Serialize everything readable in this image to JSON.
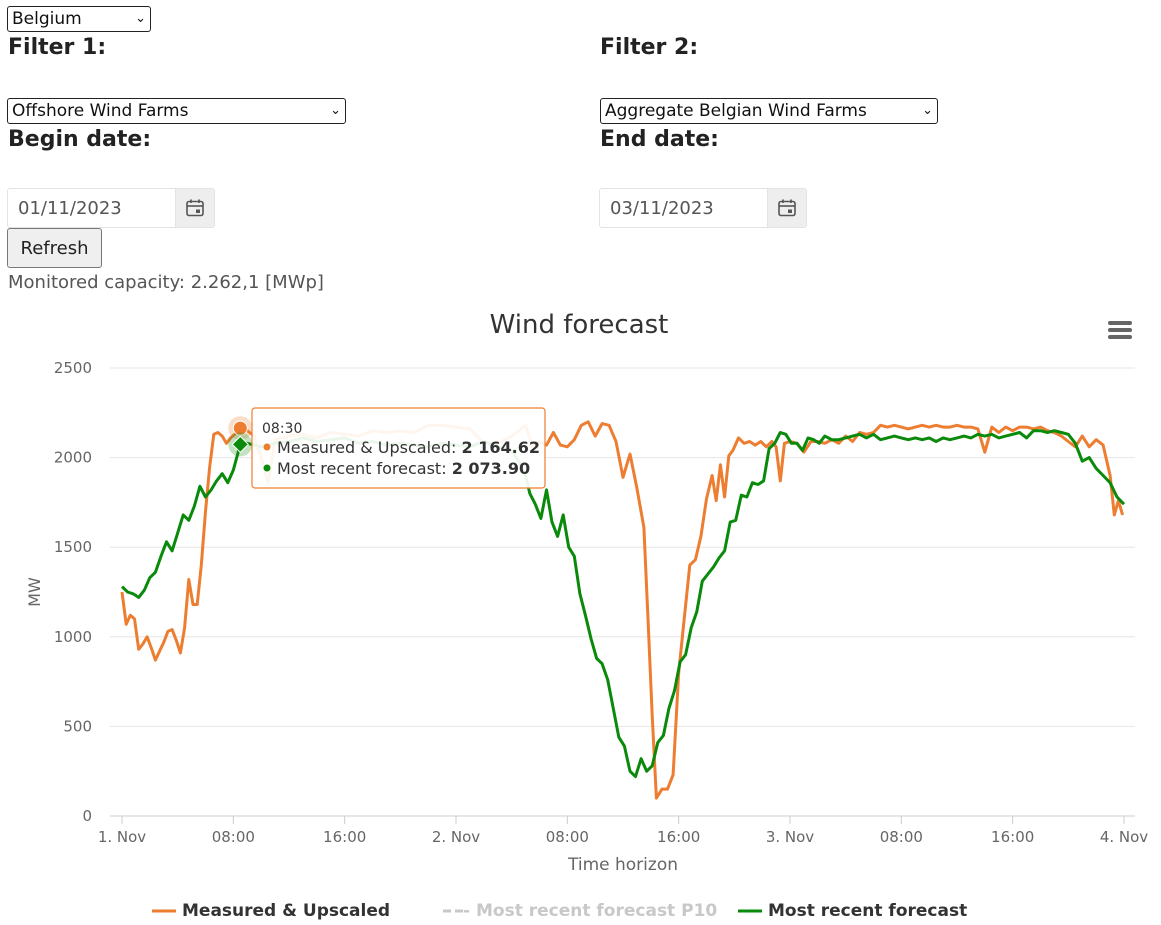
{
  "country_select": {
    "value": "Belgium"
  },
  "filter1": {
    "label": "Filter 1:",
    "value": "Offshore Wind Farms"
  },
  "filter2": {
    "label": "Filter 2:",
    "value": "Aggregate Belgian Wind Farms"
  },
  "begin_date": {
    "label": "Begin date:",
    "value": "01/11/2023"
  },
  "end_date": {
    "label": "End date:",
    "value": "03/11/2023"
  },
  "refresh_label": "Refresh",
  "capacity_text": "Monitored capacity: 2.262,1 [MWp]",
  "menu_icon": "hamburger-menu-icon",
  "calendar_icon": "calendar-icon",
  "tooltip": {
    "time": "08:30",
    "rows": [
      {
        "label": "Measured & Upscaled: ",
        "value": "2 164.62",
        "color": "#ED7D31"
      },
      {
        "label": "Most recent forecast: ",
        "value": "2 073.90",
        "color": "#0A8A0A"
      }
    ]
  },
  "chart_data": {
    "type": "line",
    "title": "Wind forecast",
    "xlabel": "Time horizon",
    "ylabel": "MW",
    "ylim": [
      0,
      2500
    ],
    "xlim_hours": [
      0,
      72
    ],
    "yticks": [
      "0",
      "500",
      "1000",
      "1500",
      "2000",
      "2500"
    ],
    "xticks": [
      {
        "h": 0,
        "label": "1. Nov"
      },
      {
        "h": 8,
        "label": "08:00"
      },
      {
        "h": 16,
        "label": "16:00"
      },
      {
        "h": 24,
        "label": "2. Nov"
      },
      {
        "h": 32,
        "label": "08:00"
      },
      {
        "h": 40,
        "label": "16:00"
      },
      {
        "h": 48,
        "label": "3. Nov"
      },
      {
        "h": 56,
        "label": "08:00"
      },
      {
        "h": 64,
        "label": "16:00"
      },
      {
        "h": 72,
        "label": "4. Nov"
      }
    ],
    "grid": true,
    "legend_position": "bottom",
    "colors": {
      "measured": "#ED7D31",
      "p10": "#C8C8C8",
      "forecast": "#0A8A0A"
    },
    "series": [
      {
        "name": "Measured & Upscaled",
        "color": "#ED7D31",
        "points": [
          [
            0,
            1250
          ],
          [
            0.3,
            1070
          ],
          [
            0.6,
            1120
          ],
          [
            0.9,
            1100
          ],
          [
            1.2,
            930
          ],
          [
            1.5,
            960
          ],
          [
            1.8,
            1000
          ],
          [
            2.1,
            940
          ],
          [
            2.4,
            870
          ],
          [
            2.7,
            920
          ],
          [
            3.0,
            970
          ],
          [
            3.3,
            1030
          ],
          [
            3.6,
            1040
          ],
          [
            3.9,
            980
          ],
          [
            4.2,
            910
          ],
          [
            4.5,
            1050
          ],
          [
            4.8,
            1320
          ],
          [
            5.1,
            1180
          ],
          [
            5.4,
            1180
          ],
          [
            5.7,
            1400
          ],
          [
            6.0,
            1700
          ],
          [
            6.3,
            1950
          ],
          [
            6.6,
            2130
          ],
          [
            6.9,
            2140
          ],
          [
            7.2,
            2120
          ],
          [
            7.5,
            2080
          ],
          [
            7.8,
            2110
          ],
          [
            8.1,
            2130
          ],
          [
            8.5,
            2165
          ],
          [
            9.0,
            2150
          ],
          [
            9.5,
            2120
          ],
          [
            10,
            2000
          ],
          [
            10.5,
            1860
          ],
          [
            11,
            2100
          ],
          [
            12,
            2120
          ],
          [
            13,
            2130
          ],
          [
            14,
            2110
          ],
          [
            15,
            2140
          ],
          [
            16,
            2130
          ],
          [
            17,
            2120
          ],
          [
            18,
            2150
          ],
          [
            19,
            2140
          ],
          [
            20,
            2150
          ],
          [
            21,
            2140
          ],
          [
            22,
            2180
          ],
          [
            23,
            2180
          ],
          [
            24,
            2170
          ],
          [
            25,
            2160
          ],
          [
            26,
            2080
          ],
          [
            27,
            2080
          ],
          [
            28,
            2120
          ],
          [
            29,
            2180
          ],
          [
            29.5,
            2060
          ],
          [
            30,
            2090
          ],
          [
            30.5,
            2070
          ],
          [
            31,
            2140
          ],
          [
            31.5,
            2070
          ],
          [
            32,
            2060
          ],
          [
            32.5,
            2100
          ],
          [
            33,
            2180
          ],
          [
            33.5,
            2200
          ],
          [
            34,
            2120
          ],
          [
            34.5,
            2190
          ],
          [
            35,
            2180
          ],
          [
            35.5,
            2090
          ],
          [
            36,
            1890
          ],
          [
            36.5,
            2020
          ],
          [
            37,
            1830
          ],
          [
            37.5,
            1610
          ],
          [
            37.8,
            1100
          ],
          [
            38.1,
            560
          ],
          [
            38.4,
            100
          ],
          [
            38.8,
            150
          ],
          [
            39.2,
            150
          ],
          [
            39.6,
            230
          ],
          [
            40.0,
            800
          ],
          [
            40.4,
            1100
          ],
          [
            40.8,
            1400
          ],
          [
            41.2,
            1430
          ],
          [
            41.6,
            1560
          ],
          [
            42.0,
            1770
          ],
          [
            42.4,
            1900
          ],
          [
            42.7,
            1760
          ],
          [
            43.0,
            1960
          ],
          [
            43.3,
            1780
          ],
          [
            43.6,
            2010
          ],
          [
            43.9,
            2040
          ],
          [
            44.3,
            2110
          ],
          [
            44.7,
            2080
          ],
          [
            45.1,
            2090
          ],
          [
            45.5,
            2070
          ],
          [
            45.9,
            2090
          ],
          [
            46.3,
            2060
          ],
          [
            46.7,
            2090
          ],
          [
            47.0,
            2060
          ],
          [
            47.3,
            1870
          ],
          [
            47.6,
            2080
          ],
          [
            48,
            2090
          ],
          [
            48.5,
            2080
          ],
          [
            49,
            2030
          ],
          [
            49.5,
            2090
          ],
          [
            50,
            2090
          ],
          [
            50.5,
            2080
          ],
          [
            51,
            2100
          ],
          [
            51.5,
            2080
          ],
          [
            52,
            2120
          ],
          [
            52.5,
            2090
          ],
          [
            53,
            2140
          ],
          [
            53.5,
            2130
          ],
          [
            54,
            2140
          ],
          [
            54.5,
            2180
          ],
          [
            55,
            2170
          ],
          [
            55.5,
            2180
          ],
          [
            56,
            2170
          ],
          [
            56.5,
            2160
          ],
          [
            57,
            2170
          ],
          [
            57.5,
            2180
          ],
          [
            58,
            2170
          ],
          [
            58.5,
            2180
          ],
          [
            59,
            2170
          ],
          [
            59.5,
            2170
          ],
          [
            60,
            2180
          ],
          [
            60.5,
            2170
          ],
          [
            61,
            2170
          ],
          [
            61.5,
            2160
          ],
          [
            62,
            2030
          ],
          [
            62.5,
            2170
          ],
          [
            63,
            2140
          ],
          [
            63.5,
            2170
          ],
          [
            64,
            2150
          ],
          [
            64.5,
            2170
          ],
          [
            65,
            2170
          ],
          [
            65.5,
            2160
          ],
          [
            66,
            2170
          ],
          [
            66.5,
            2150
          ],
          [
            67,
            2140
          ],
          [
            67.5,
            2120
          ],
          [
            68,
            2090
          ],
          [
            68.5,
            2060
          ],
          [
            69,
            2120
          ],
          [
            69.5,
            2060
          ],
          [
            70,
            2100
          ],
          [
            70.5,
            2070
          ],
          [
            71,
            1900
          ],
          [
            71.3,
            1680
          ],
          [
            71.6,
            1760
          ],
          [
            71.9,
            1680
          ]
        ]
      },
      {
        "name": "- Most recent forecast P10",
        "color": "#C8C8C8",
        "points": []
      },
      {
        "name": "Most recent forecast",
        "color": "#0A8A0A",
        "points": [
          [
            0,
            1280
          ],
          [
            0.4,
            1250
          ],
          [
            0.8,
            1240
          ],
          [
            1.2,
            1220
          ],
          [
            1.6,
            1260
          ],
          [
            2.0,
            1330
          ],
          [
            2.4,
            1360
          ],
          [
            2.8,
            1450
          ],
          [
            3.2,
            1530
          ],
          [
            3.6,
            1480
          ],
          [
            4.0,
            1580
          ],
          [
            4.4,
            1680
          ],
          [
            4.8,
            1650
          ],
          [
            5.2,
            1730
          ],
          [
            5.6,
            1840
          ],
          [
            6.0,
            1780
          ],
          [
            6.4,
            1820
          ],
          [
            6.8,
            1870
          ],
          [
            7.2,
            1910
          ],
          [
            7.6,
            1860
          ],
          [
            8.0,
            1930
          ],
          [
            8.5,
            2074
          ],
          [
            9.0,
            2080
          ],
          [
            10,
            2060
          ],
          [
            11,
            2080
          ],
          [
            12,
            2090
          ],
          [
            13,
            2110
          ],
          [
            14,
            2090
          ],
          [
            15,
            2100
          ],
          [
            16,
            2110
          ],
          [
            17,
            2080
          ],
          [
            18,
            2090
          ],
          [
            19,
            2070
          ],
          [
            20,
            2080
          ],
          [
            21,
            2070
          ],
          [
            22,
            2060
          ],
          [
            23,
            2080
          ],
          [
            24,
            2070
          ],
          [
            25,
            2060
          ],
          [
            26,
            2090
          ],
          [
            27,
            2060
          ],
          [
            28,
            2040
          ],
          [
            28.5,
            1980
          ],
          [
            29,
            1900
          ],
          [
            29.3,
            1800
          ],
          [
            29.7,
            1740
          ],
          [
            30.1,
            1660
          ],
          [
            30.5,
            1820
          ],
          [
            30.9,
            1640
          ],
          [
            31.3,
            1560
          ],
          [
            31.7,
            1680
          ],
          [
            32.1,
            1500
          ],
          [
            32.5,
            1450
          ],
          [
            32.9,
            1240
          ],
          [
            33.3,
            1120
          ],
          [
            33.7,
            990
          ],
          [
            34.1,
            880
          ],
          [
            34.5,
            850
          ],
          [
            34.9,
            760
          ],
          [
            35.3,
            600
          ],
          [
            35.7,
            440
          ],
          [
            36.1,
            390
          ],
          [
            36.5,
            250
          ],
          [
            36.9,
            220
          ],
          [
            37.3,
            320
          ],
          [
            37.7,
            250
          ],
          [
            38.1,
            280
          ],
          [
            38.5,
            410
          ],
          [
            38.9,
            450
          ],
          [
            39.3,
            600
          ],
          [
            39.7,
            700
          ],
          [
            40.1,
            860
          ],
          [
            40.5,
            900
          ],
          [
            40.9,
            1050
          ],
          [
            41.3,
            1140
          ],
          [
            41.7,
            1310
          ],
          [
            42.1,
            1350
          ],
          [
            42.5,
            1390
          ],
          [
            42.9,
            1440
          ],
          [
            43.3,
            1480
          ],
          [
            43.7,
            1640
          ],
          [
            44.1,
            1650
          ],
          [
            44.5,
            1790
          ],
          [
            44.9,
            1780
          ],
          [
            45.3,
            1860
          ],
          [
            45.7,
            1850
          ],
          [
            46.1,
            1870
          ],
          [
            46.5,
            2050
          ],
          [
            46.9,
            2080
          ],
          [
            47.3,
            2140
          ],
          [
            47.7,
            2130
          ],
          [
            48.1,
            2080
          ],
          [
            48.5,
            2080
          ],
          [
            48.9,
            2040
          ],
          [
            49.3,
            2110
          ],
          [
            49.7,
            2100
          ],
          [
            50.1,
            2080
          ],
          [
            50.5,
            2120
          ],
          [
            51,
            2100
          ],
          [
            51.5,
            2100
          ],
          [
            52,
            2110
          ],
          [
            52.5,
            2120
          ],
          [
            53,
            2130
          ],
          [
            53.5,
            2110
          ],
          [
            54,
            2130
          ],
          [
            54.5,
            2100
          ],
          [
            55,
            2110
          ],
          [
            55.5,
            2120
          ],
          [
            56,
            2110
          ],
          [
            56.5,
            2100
          ],
          [
            57,
            2110
          ],
          [
            57.5,
            2100
          ],
          [
            58,
            2110
          ],
          [
            58.5,
            2090
          ],
          [
            59,
            2110
          ],
          [
            59.5,
            2100
          ],
          [
            60,
            2110
          ],
          [
            60.5,
            2120
          ],
          [
            61,
            2110
          ],
          [
            61.5,
            2130
          ],
          [
            62,
            2120
          ],
          [
            62.5,
            2130
          ],
          [
            63,
            2110
          ],
          [
            63.5,
            2120
          ],
          [
            64,
            2130
          ],
          [
            64.5,
            2140
          ],
          [
            65,
            2110
          ],
          [
            65.5,
            2150
          ],
          [
            66,
            2150
          ],
          [
            66.5,
            2140
          ],
          [
            67,
            2150
          ],
          [
            67.5,
            2140
          ],
          [
            68,
            2130
          ],
          [
            68.5,
            2080
          ],
          [
            69,
            1980
          ],
          [
            69.5,
            2000
          ],
          [
            70,
            1940
          ],
          [
            70.5,
            1900
          ],
          [
            71,
            1860
          ],
          [
            71.5,
            1780
          ],
          [
            72,
            1740
          ]
        ]
      }
    ],
    "highlight": {
      "h": 8.5,
      "measured": 2164.62,
      "forecast": 2073.9
    }
  }
}
